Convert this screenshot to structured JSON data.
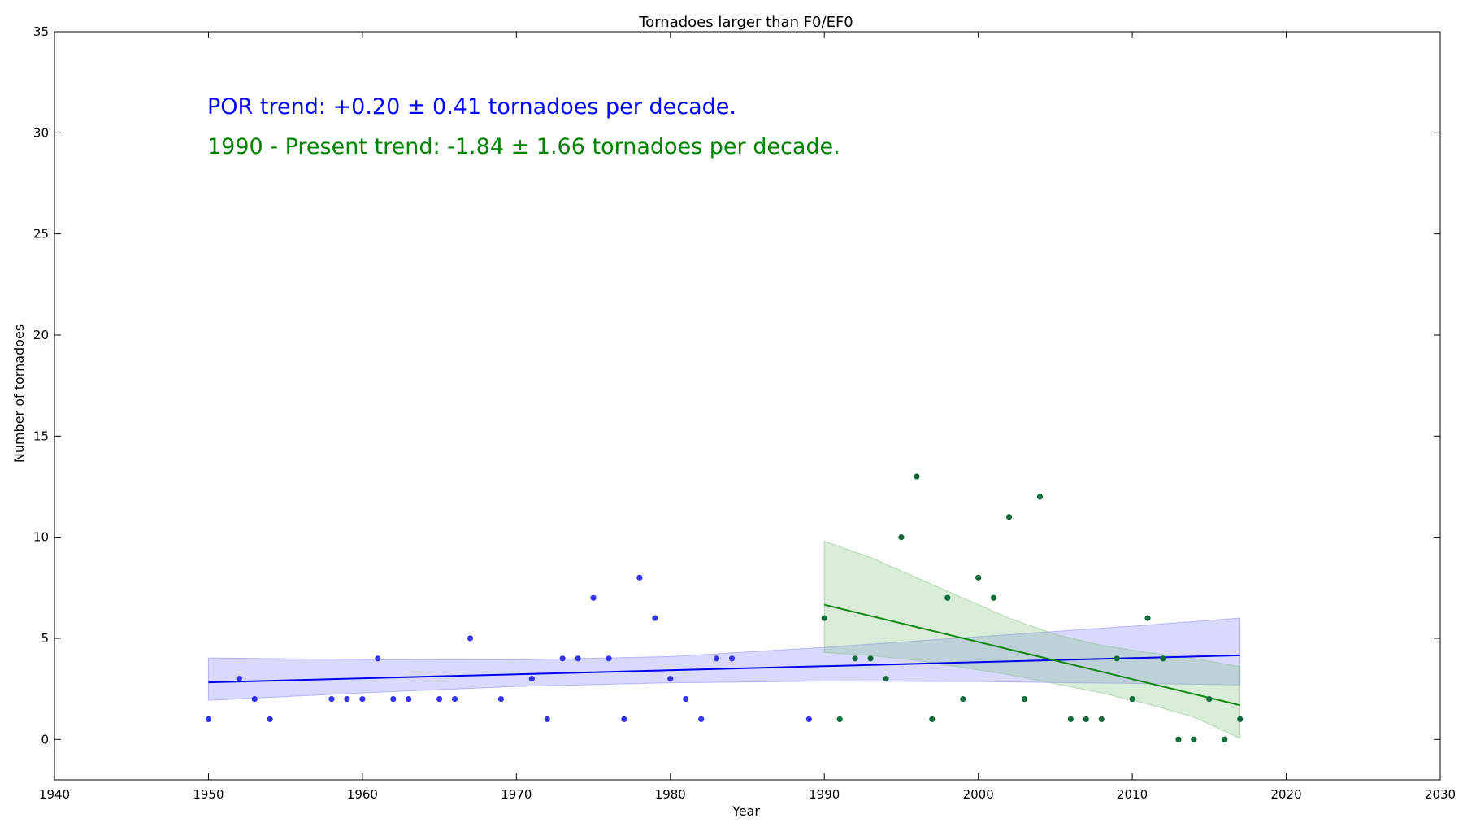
{
  "chart_data": {
    "type": "scatter",
    "title": "Tornadoes larger than F0/EF0",
    "xlabel": "Year",
    "ylabel": "Number of tornadoes",
    "xlim": [
      1940,
      2030
    ],
    "ylim": [
      -2,
      35
    ],
    "xticks": [
      1940,
      1950,
      1960,
      1970,
      1980,
      1990,
      2000,
      2010,
      2020,
      2030
    ],
    "yticks": [
      0,
      5,
      10,
      15,
      20,
      25,
      30,
      35
    ],
    "grid": false,
    "annotations": [
      {
        "text": "POR trend: +0.20 ± 0.41 tornadoes per decade.",
        "color": "#0000ff"
      },
      {
        "text": "1990 - Present trend: -1.84 ± 1.66 tornadoes per decade.",
        "color": "#008000"
      }
    ],
    "series": [
      {
        "kind": "points",
        "color": "#3333ee",
        "points": [
          [
            1950,
            1
          ],
          [
            1952,
            3
          ],
          [
            1953,
            2
          ],
          [
            1954,
            1
          ],
          [
            1958,
            2
          ],
          [
            1959,
            2
          ],
          [
            1960,
            2
          ],
          [
            1961,
            4
          ],
          [
            1962,
            2
          ],
          [
            1963,
            2
          ],
          [
            1965,
            2
          ],
          [
            1966,
            2
          ],
          [
            1967,
            5
          ],
          [
            1969,
            2
          ],
          [
            1971,
            3
          ],
          [
            1972,
            1
          ],
          [
            1973,
            4
          ],
          [
            1974,
            4
          ],
          [
            1975,
            7
          ],
          [
            1976,
            4
          ],
          [
            1977,
            1
          ],
          [
            1978,
            8
          ],
          [
            1979,
            6
          ],
          [
            1980,
            3
          ],
          [
            1981,
            2
          ],
          [
            1982,
            1
          ],
          [
            1983,
            4
          ],
          [
            1984,
            4
          ],
          [
            1989,
            1
          ]
        ]
      },
      {
        "kind": "points",
        "color": "#0f6b3a",
        "points": [
          [
            1990,
            6
          ],
          [
            1991,
            1
          ],
          [
            1992,
            4
          ],
          [
            1993,
            4
          ],
          [
            1994,
            3
          ],
          [
            1995,
            10
          ],
          [
            1996,
            13
          ],
          [
            1997,
            1
          ],
          [
            1998,
            7
          ],
          [
            1999,
            2
          ],
          [
            2000,
            8
          ],
          [
            2001,
            7
          ],
          [
            2002,
            11
          ],
          [
            2003,
            2
          ],
          [
            2004,
            12
          ],
          [
            2006,
            1
          ],
          [
            2007,
            1
          ],
          [
            2008,
            1
          ],
          [
            2009,
            4
          ],
          [
            2010,
            2
          ],
          [
            2011,
            6
          ],
          [
            2012,
            4
          ],
          [
            2013,
            0
          ],
          [
            2014,
            0
          ],
          [
            2015,
            2
          ],
          [
            2016,
            0
          ],
          [
            2017,
            1
          ]
        ]
      },
      {
        "kind": "trend",
        "color": "#0000ee",
        "band_color": "#8080ff",
        "x": [
          1950,
          2017
        ],
        "y": [
          2.82,
          4.16
        ],
        "band": {
          "x": [
            1950,
            1960,
            1970,
            1980,
            1990,
            2000,
            2010,
            2017
          ],
          "upper": [
            4.03,
            3.95,
            3.93,
            4.1,
            4.55,
            5.08,
            5.6,
            6.0
          ],
          "lower": [
            1.93,
            2.3,
            2.62,
            2.8,
            2.88,
            2.86,
            2.77,
            2.7
          ]
        }
      },
      {
        "kind": "trend",
        "color": "#118811",
        "band_color": "#7fbf7f",
        "x": [
          1990,
          2017
        ],
        "y": [
          6.66,
          1.69
        ],
        "band": {
          "x": [
            1990,
            1993,
            1996,
            1999,
            2002,
            2005,
            2008,
            2011,
            2014,
            2017
          ],
          "upper": [
            9.8,
            9.0,
            8.0,
            7.0,
            6.0,
            5.2,
            4.65,
            4.3,
            4.0,
            3.6
          ],
          "lower": [
            4.3,
            4.15,
            3.9,
            3.55,
            3.2,
            2.75,
            2.3,
            1.75,
            1.1,
            0.05
          ]
        }
      }
    ]
  }
}
